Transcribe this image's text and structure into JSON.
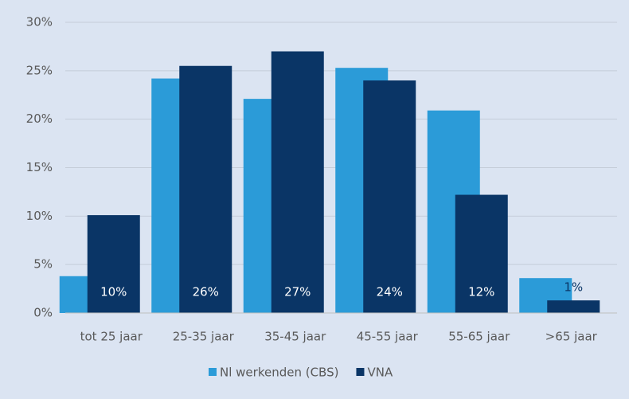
{
  "chart_data": {
    "type": "bar",
    "categories": [
      "tot 25 jaar",
      "25-35 jaar",
      "35-45 jaar",
      "45-55 jaar",
      "55-65 jaar",
      ">65 jaar"
    ],
    "series": [
      {
        "name": "Nl werkenden (CBS)",
        "color": "#2b9bd8",
        "values": [
          3.8,
          24.2,
          22.1,
          25.3,
          20.9,
          3.6
        ]
      },
      {
        "name": "VNA",
        "color": "#0a3566",
        "values": [
          10.1,
          25.5,
          27.0,
          24.0,
          12.2,
          1.3
        ],
        "value_labels": [
          "10%",
          "26%",
          "27%",
          "24%",
          "12%",
          "1%"
        ]
      }
    ],
    "ylim": [
      0,
      30
    ],
    "yticks": [
      {
        "value": 0,
        "label": "0%"
      },
      {
        "value": 5,
        "label": "5%"
      },
      {
        "value": 10,
        "label": "10%"
      },
      {
        "value": 15,
        "label": "15%"
      },
      {
        "value": 20,
        "label": "20%"
      },
      {
        "value": 25,
        "label": "25%"
      },
      {
        "value": 30,
        "label": "30%"
      }
    ],
    "grid": true,
    "legend": "bottom"
  }
}
